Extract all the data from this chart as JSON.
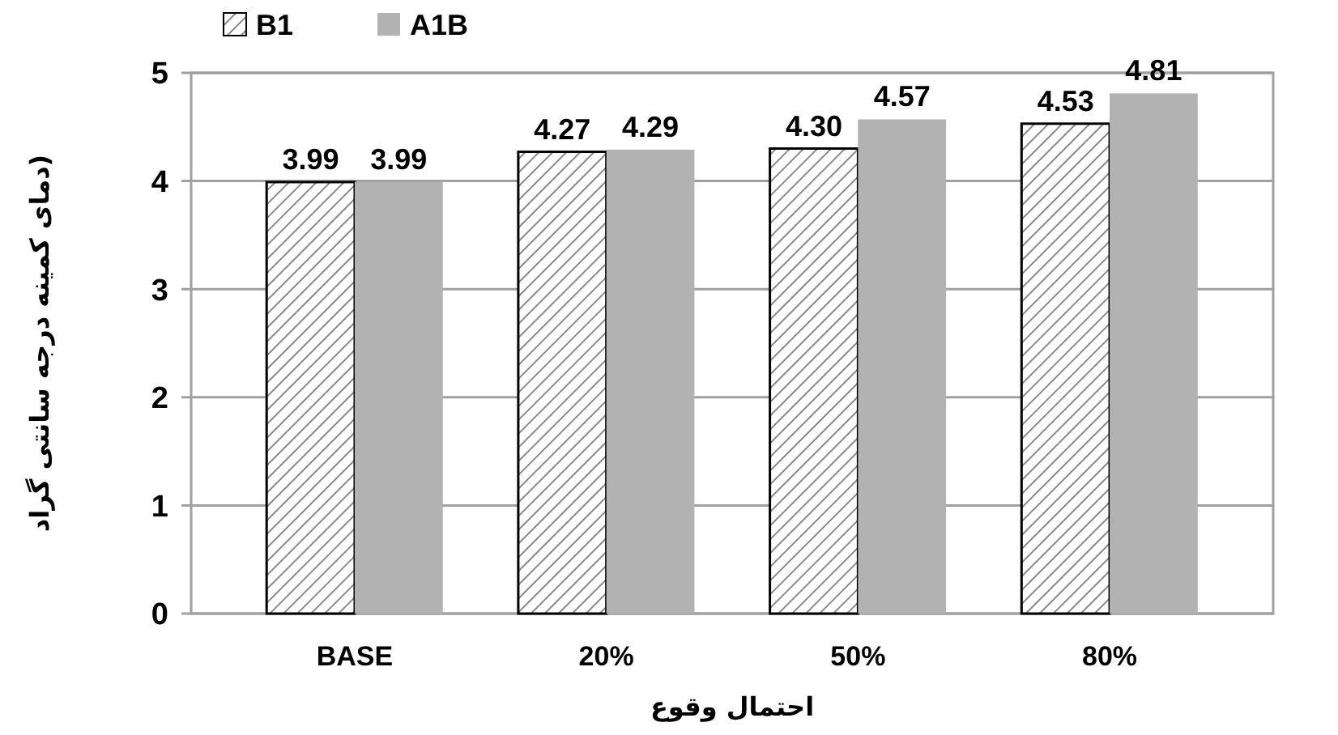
{
  "chart_data": {
    "type": "bar",
    "xlabel": "احتمال وقوع",
    "ylabel": "دمای کمینه  درجه سانتی گراد)",
    "categories": [
      "BASE",
      "20%",
      "50%",
      "80%"
    ],
    "series": [
      {
        "name": "B1",
        "color": "#ffffff",
        "values": [
          3.99,
          4.27,
          4.3,
          4.53
        ],
        "value_labels": [
          "3.99",
          "4.27",
          "4.30",
          "4.53"
        ]
      },
      {
        "name": "A1B",
        "color": "#b2b2b2",
        "values": [
          3.99,
          4.29,
          4.57,
          4.81
        ],
        "value_labels": [
          "3.99",
          "4.29",
          "4.57",
          "4.81"
        ]
      }
    ],
    "ylim": [
      0,
      5
    ],
    "yticks": [
      0,
      1,
      2,
      3,
      4,
      5
    ],
    "grid": "y",
    "legend": "top left"
  }
}
